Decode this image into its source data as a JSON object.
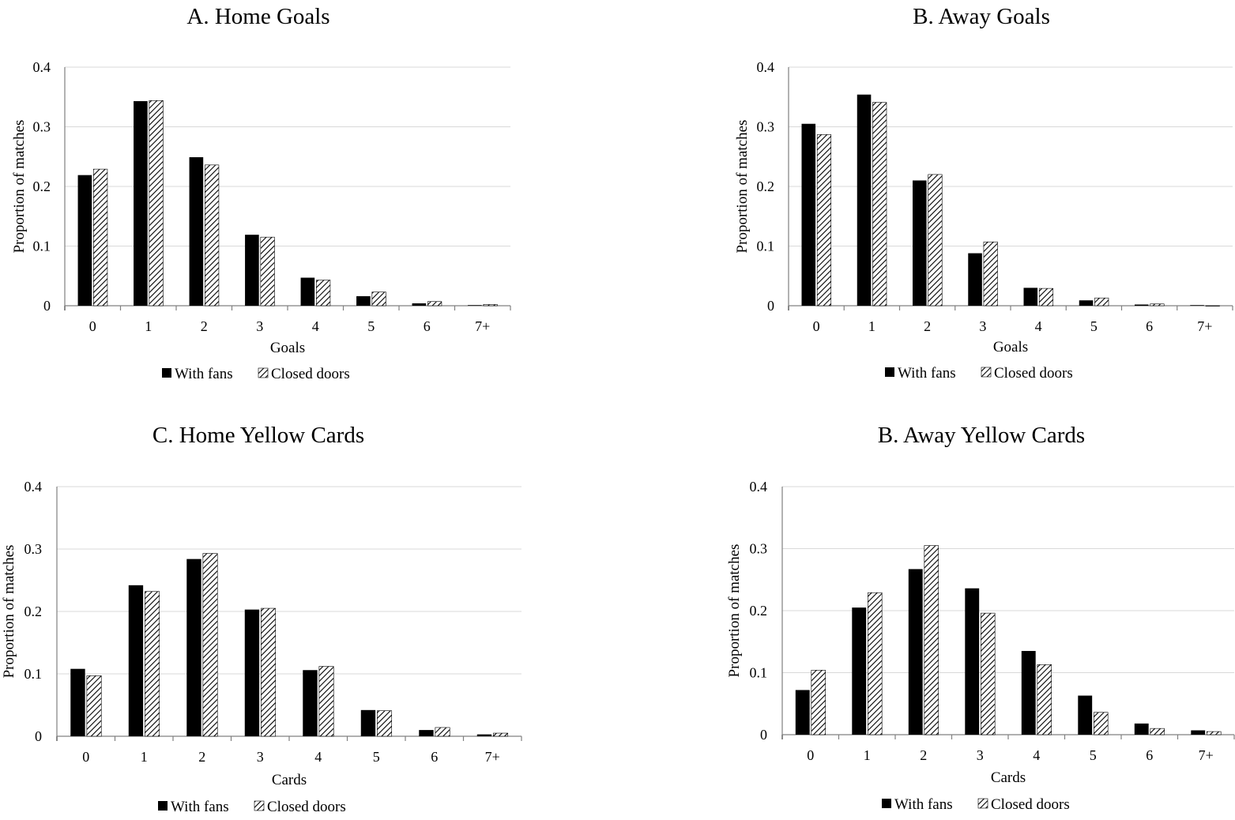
{
  "colors": {
    "with_fans": "#000000",
    "closed_doors_hatch": "#000000",
    "grid": "#d9d9d9",
    "axis": "#808080"
  },
  "legend_symbols": {
    "with_fans": "solid-black-square",
    "closed_doors": "diagonal-hatch-square"
  },
  "chart_data": [
    {
      "type": "bar",
      "title": "A. Home Goals",
      "xlabel": "Goals",
      "ylabel": "Proportion of matches",
      "categories": [
        "0",
        "1",
        "2",
        "3",
        "4",
        "5",
        "6",
        "7+"
      ],
      "ylim": [
        0,
        0.4
      ],
      "yticks": [
        "0",
        "0.1",
        "0.2",
        "0.3",
        "0.4"
      ],
      "grid": true,
      "legend": "bottom",
      "series": [
        {
          "name": "With fans",
          "values": [
            0.219,
            0.343,
            0.249,
            0.119,
            0.047,
            0.016,
            0.004,
            0.001
          ]
        },
        {
          "name": "Closed doors",
          "values": [
            0.229,
            0.344,
            0.236,
            0.115,
            0.043,
            0.023,
            0.007,
            0.002
          ]
        }
      ]
    },
    {
      "type": "bar",
      "title": "B. Away Goals",
      "xlabel": "Goals",
      "ylabel": "Proportion of matches",
      "categories": [
        "0",
        "1",
        "2",
        "3",
        "4",
        "5",
        "6",
        "7+"
      ],
      "ylim": [
        0,
        0.4
      ],
      "yticks": [
        "0",
        "0.1",
        "0.2",
        "0.3",
        "0.4"
      ],
      "grid": true,
      "legend": "bottom",
      "series": [
        {
          "name": "With fans",
          "values": [
            0.305,
            0.354,
            0.21,
            0.088,
            0.03,
            0.009,
            0.002,
            0.001
          ]
        },
        {
          "name": "Closed doors",
          "values": [
            0.287,
            0.341,
            0.22,
            0.107,
            0.029,
            0.013,
            0.003,
            0.0
          ]
        }
      ]
    },
    {
      "type": "bar",
      "title": "C. Home Yellow Cards",
      "xlabel": "Cards",
      "ylabel": "Proportion of matches",
      "categories": [
        "0",
        "1",
        "2",
        "3",
        "4",
        "5",
        "6",
        "7+"
      ],
      "ylim": [
        0,
        0.4
      ],
      "yticks": [
        "0",
        "0.1",
        "0.2",
        "0.3",
        "0.4"
      ],
      "grid": true,
      "legend": "bottom",
      "series": [
        {
          "name": "With fans",
          "values": [
            0.108,
            0.242,
            0.284,
            0.203,
            0.106,
            0.042,
            0.01,
            0.003
          ]
        },
        {
          "name": "Closed doors",
          "values": [
            0.097,
            0.232,
            0.293,
            0.205,
            0.112,
            0.041,
            0.014,
            0.005
          ]
        }
      ]
    },
    {
      "type": "bar",
      "title": "B. Away Yellow Cards",
      "xlabel": "Cards",
      "ylabel": "Proportion of matches",
      "categories": [
        "0",
        "1",
        "2",
        "3",
        "4",
        "5",
        "6",
        "7+"
      ],
      "ylim": [
        0,
        0.4
      ],
      "yticks": [
        "0",
        "0.1",
        "0.2",
        "0.3",
        "0.4"
      ],
      "grid": true,
      "legend": "bottom",
      "series": [
        {
          "name": "With fans",
          "values": [
            0.072,
            0.205,
            0.267,
            0.236,
            0.135,
            0.063,
            0.018,
            0.007
          ]
        },
        {
          "name": "Closed doors",
          "values": [
            0.104,
            0.229,
            0.305,
            0.196,
            0.113,
            0.036,
            0.01,
            0.005
          ]
        }
      ]
    }
  ]
}
